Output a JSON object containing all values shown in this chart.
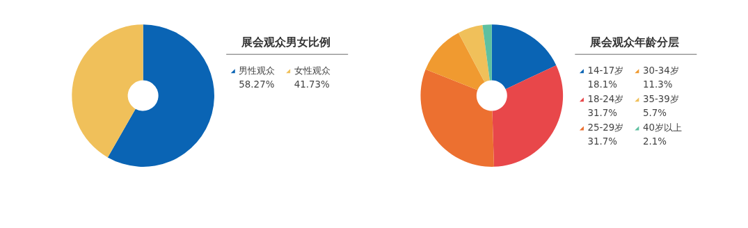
{
  "chart_data": [
    {
      "type": "donut",
      "title": "展会观众男女比例",
      "categories": [
        "男性观众",
        "女性观众"
      ],
      "values": [
        58.27,
        41.73
      ],
      "value_labels": [
        "58.27%",
        "41.73%"
      ],
      "colors": [
        "#0a64b4",
        "#f0c05a"
      ],
      "legend": "right"
    },
    {
      "type": "donut",
      "title": "展会观众年龄分层",
      "categories": [
        "14-17岁",
        "18-24岁",
        "25-29岁",
        "30-34岁",
        "35-39岁",
        "40岁以上"
      ],
      "values": [
        18.1,
        31.7,
        31.7,
        11.3,
        5.7,
        2.1
      ],
      "value_labels": [
        "18.1%",
        "31.7%",
        "31.7%",
        "11.3%",
        "5.7%",
        "2.1%"
      ],
      "colors": [
        "#0a64b4",
        "#e8474a",
        "#ec7030",
        "#f09a30",
        "#f0c05a",
        "#5ec0a0"
      ],
      "legend": "right"
    }
  ]
}
